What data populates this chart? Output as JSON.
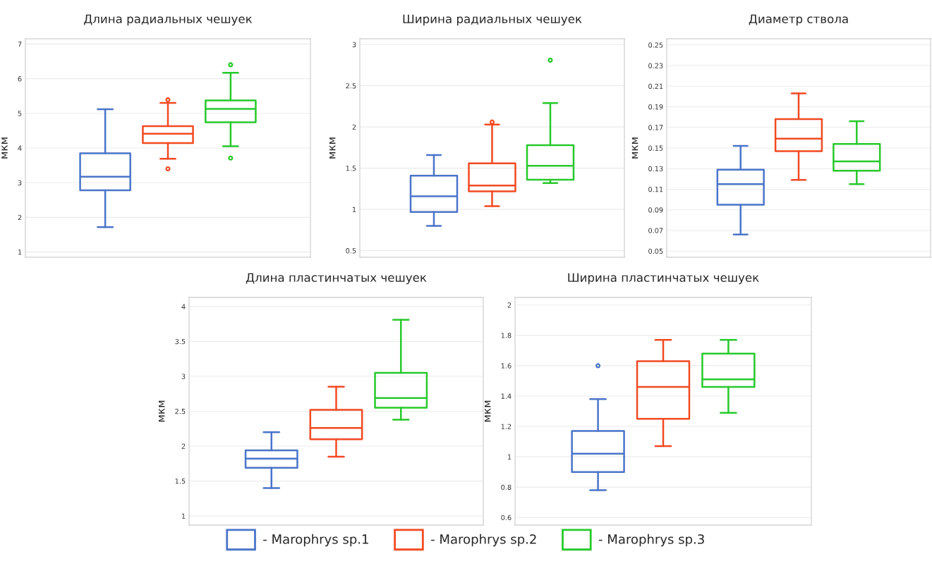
{
  "chart_data": [
    {
      "type": "box",
      "title": "Длина радиальных чешуек",
      "ylabel": "мкм",
      "categories": [
        null
      ],
      "ylim": [
        0.85,
        7.15
      ],
      "yticks": [
        1,
        2,
        3,
        4,
        5,
        6,
        7
      ],
      "grid": "y",
      "series": [
        {
          "color": "#4a74c9",
          "boxes": [
            {
              "low": 1.72,
              "q1": 2.78,
              "median": 3.17,
              "q3": 3.85,
              "high": 5.12
            }
          ]
        },
        {
          "color": "#f24a22",
          "boxes": [
            {
              "low": 3.69,
              "q1": 4.14,
              "median": 4.41,
              "q3": 4.63,
              "high": 5.3,
              "outliers": [
                5.39,
                3.4
              ]
            }
          ]
        },
        {
          "color": "#27c92b",
          "boxes": [
            {
              "low": 4.05,
              "q1": 4.74,
              "median": 5.13,
              "q3": 5.37,
              "high": 6.17,
              "outliers": [
                6.4,
                3.71
              ]
            }
          ]
        }
      ]
    },
    {
      "type": "box",
      "title": "Ширина радиальных чешуек",
      "ylabel": "мкм",
      "categories": [
        null
      ],
      "ylim": [
        0.42,
        3.07
      ],
      "yticks": [
        0.5,
        1,
        1.5,
        2,
        2.5,
        3
      ],
      "grid": "y",
      "series": [
        {
          "color": "#4a74c9",
          "boxes": [
            {
              "low": 0.8,
              "q1": 0.97,
              "median": 1.16,
              "q3": 1.41,
              "high": 1.66
            }
          ]
        },
        {
          "color": "#f24a22",
          "boxes": [
            {
              "low": 1.04,
              "q1": 1.22,
              "median": 1.29,
              "q3": 1.56,
              "high": 2.03,
              "outliers": [
                2.06
              ]
            }
          ]
        },
        {
          "color": "#27c92b",
          "boxes": [
            {
              "low": 1.32,
              "q1": 1.36,
              "median": 1.53,
              "q3": 1.78,
              "high": 2.29,
              "outliers": [
                2.81
              ]
            }
          ]
        }
      ]
    },
    {
      "type": "box",
      "title": "Диаметр ствола",
      "ylabel": "мкм",
      "categories": [
        null
      ],
      "ylim": [
        0.044,
        0.256
      ],
      "yticks": [
        0.05,
        0.07,
        0.09,
        0.11,
        0.13,
        0.15,
        0.17,
        0.19,
        0.21,
        0.23,
        0.25
      ],
      "grid": "y",
      "series": [
        {
          "color": "#4a74c9",
          "boxes": [
            {
              "low": 0.066,
              "q1": 0.095,
              "median": 0.115,
              "q3": 0.129,
              "high": 0.152
            }
          ]
        },
        {
          "color": "#f24a22",
          "boxes": [
            {
              "low": 0.119,
              "q1": 0.147,
              "median": 0.159,
              "q3": 0.178,
              "high": 0.203
            }
          ]
        },
        {
          "color": "#27c92b",
          "boxes": [
            {
              "low": 0.115,
              "q1": 0.128,
              "median": 0.137,
              "q3": 0.154,
              "high": 0.176
            }
          ]
        }
      ]
    },
    {
      "type": "box",
      "title": "Длина пластинчатых чешуек",
      "ylabel": "мкм",
      "categories": [
        null
      ],
      "ylim": [
        0.87,
        4.13
      ],
      "yticks": [
        1,
        1.5,
        2,
        2.5,
        3,
        3.5,
        4
      ],
      "grid": "y",
      "series": [
        {
          "color": "#4a74c9",
          "boxes": [
            {
              "low": 1.4,
              "q1": 1.69,
              "median": 1.82,
              "q3": 1.94,
              "high": 2.2
            }
          ]
        },
        {
          "color": "#f24a22",
          "boxes": [
            {
              "low": 1.85,
              "q1": 2.1,
              "median": 2.26,
              "q3": 2.52,
              "high": 2.85
            }
          ]
        },
        {
          "color": "#27c92b",
          "boxes": [
            {
              "low": 2.38,
              "q1": 2.55,
              "median": 2.69,
              "q3": 3.05,
              "high": 3.81
            }
          ]
        }
      ]
    },
    {
      "type": "box",
      "title": "Ширина пластинчатых чешуек",
      "ylabel": "мкм",
      "categories": [
        null
      ],
      "ylim": [
        0.55,
        2.05
      ],
      "yticks": [
        0.6,
        0.8,
        1,
        1.2,
        1.4,
        1.6,
        1.8,
        2
      ],
      "grid": "y",
      "legend": "bottom",
      "series": [
        {
          "name": "- Marophrys sp.1",
          "color": "#4a74c9",
          "boxes": [
            {
              "low": 0.78,
              "q1": 0.9,
              "median": 1.02,
              "q3": 1.17,
              "high": 1.38,
              "outliers": [
                1.6
              ]
            }
          ]
        },
        {
          "name": "- Marophrys sp.2",
          "color": "#f24a22",
          "boxes": [
            {
              "low": 1.07,
              "q1": 1.25,
              "median": 1.46,
              "q3": 1.63,
              "high": 1.77
            }
          ]
        },
        {
          "name": "- Marophrys sp.3",
          "color": "#27c92b",
          "boxes": [
            {
              "low": 1.29,
              "q1": 1.46,
              "median": 1.51,
              "q3": 1.68,
              "high": 1.77
            }
          ]
        }
      ]
    }
  ]
}
